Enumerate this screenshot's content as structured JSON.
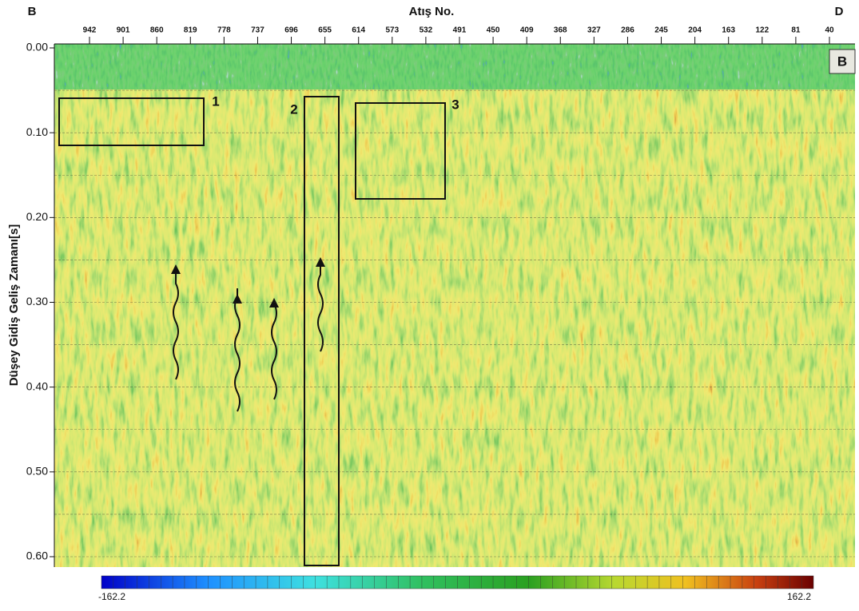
{
  "header": {
    "left_corner": "B",
    "title": "Atış No.",
    "right_corner": "D"
  },
  "x_ticks": [
    "942",
    "901",
    "860",
    "819",
    "778",
    "737",
    "696",
    "655",
    "614",
    "573",
    "532",
    "491",
    "450",
    "409",
    "368",
    "327",
    "286",
    "245",
    "204",
    "163",
    "122",
    "81",
    "40"
  ],
  "y_axis": {
    "label": "Düşey Gidiş Geliş Zamanı[s]",
    "ticks": [
      "0.00",
      "0.10",
      "0.20",
      "0.30",
      "0.40",
      "0.50",
      "0.60"
    ]
  },
  "panel_label": "B",
  "boxes": [
    {
      "label": "1"
    },
    {
      "label": "2"
    },
    {
      "label": "3"
    }
  ],
  "colorbar": {
    "min": "-162.2",
    "max": "162.2"
  }
}
